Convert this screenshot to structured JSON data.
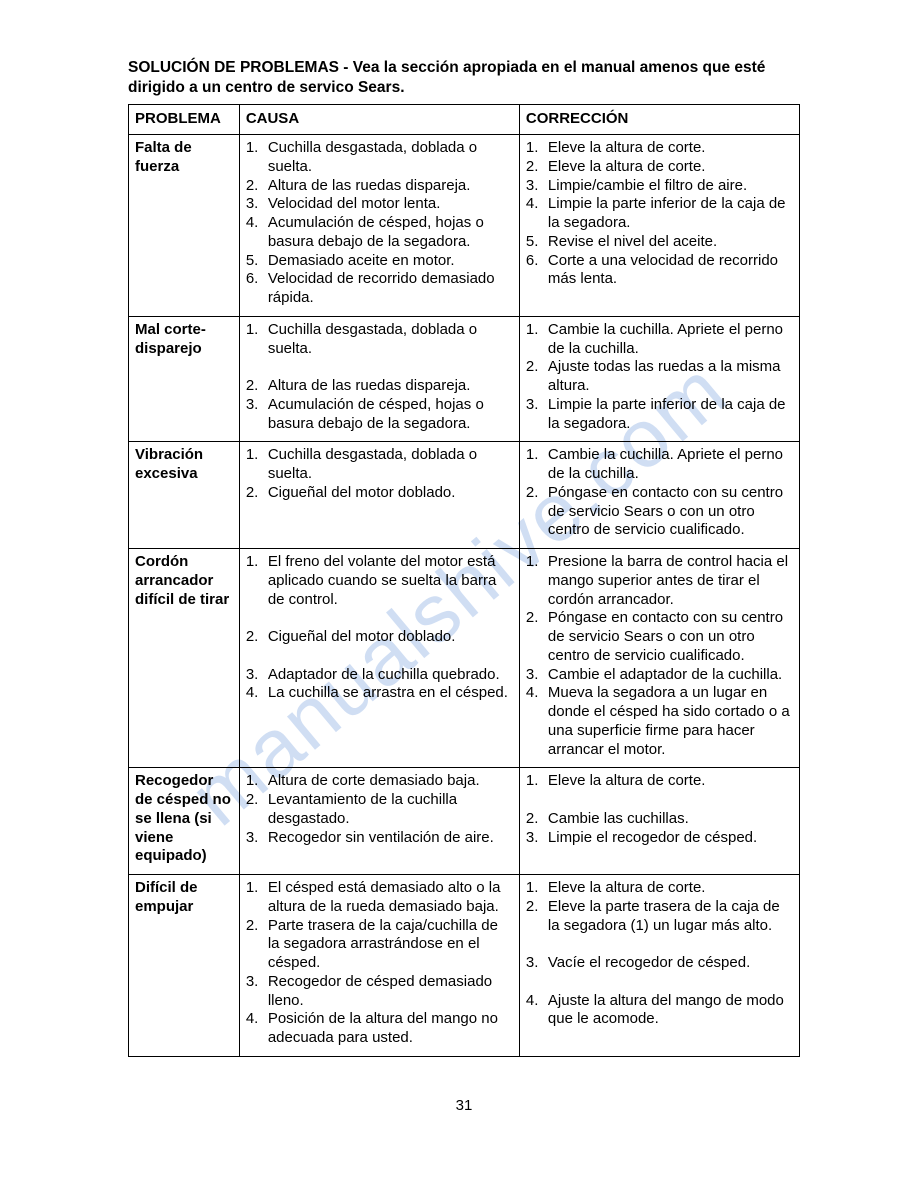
{
  "watermark_text": "manualshive.com",
  "title_prefix": "SOLUCIÓN DE PROBLEMAS",
  "title_rest": " - Vea la sección apropiada en el manual amenos que esté dirigido a un centro de servico Sears.",
  "headers": {
    "problem": "PROBLEMA",
    "cause": "CAUSA",
    "fix": "CORRECCIÓN"
  },
  "page_number": "31",
  "rows": [
    {
      "problem": "Falta de fuerza",
      "causes": [
        "Cuchilla desgastada, doblada o suelta.",
        "Altura de las ruedas dispareja.",
        "Velocidad del motor lenta.",
        "Acumulación de césped, hojas o basura debajo de la segadora.",
        "Demasiado aceite en motor.",
        "Velocidad de recorrido demasiado rápida."
      ],
      "fixes": [
        "Eleve la altura de corte.",
        "Eleve la altura de corte.",
        "Limpie/cambie el filtro de aire.",
        "Limpie la parte inferior de la caja de la segadora.",
        "Revise el nivel del aceite.",
        "Corte a una velocidad de recorrido más lenta."
      ],
      "cause_gaps": [
        0
      ],
      "fix_gaps": [
        0
      ]
    },
    {
      "problem": "Mal corte-disparejo",
      "causes": [
        "Cuchilla desgastada, doblada o suelta.",
        "Altura de las ruedas dispareja.",
        "Acumulación de césped, hojas o basura debajo de la segadora."
      ],
      "fixes": [
        "Cambie la cuchilla. Apriete el perno de la cuchilla.",
        "Ajuste todas las ruedas a la misma altura.",
        "Limpie la parte inferior de la caja de la segadora."
      ],
      "cause_gaps": [
        1
      ],
      "fix_gaps": []
    },
    {
      "problem": "Vibración excesiva",
      "causes": [
        "Cuchilla desgastada, doblada o suelta.",
        "Cigueñal del motor doblado."
      ],
      "fixes": [
        "Cambie la cuchilla. Apriete el perno de la cuchilla.",
        "Póngase en contacto con su centro de servicio Sears o con un otro centro de servicio cualificado."
      ],
      "cause_gaps": [],
      "fix_gaps": []
    },
    {
      "problem": "Cordón arrancador difícil de tirar",
      "causes": [
        "El freno del volante del motor está aplicado cuando se suelta la barra de control.",
        "Cigueñal del motor doblado.",
        "Adaptador de la cuchilla quebrado.",
        "La cuchilla se arrastra en el césped."
      ],
      "fixes": [
        "Presione la barra de control hacia el mango superior antes de tirar el cordón arrancador.",
        "Póngase en contacto con su centro de servicio Sears o con un otro centro de servicio cualificado.",
        "Cambie el adaptador de la cuchilla.",
        "Mueva la segadora a un lugar en donde el césped ha sido cortado o a una superficie firme para hacer arrancar el motor."
      ],
      "cause_gaps": [
        1,
        1
      ],
      "fix_gaps": []
    },
    {
      "problem": "Recogedor de césped no se llena (si viene equipado)",
      "causes": [
        "Altura de corte demasiado baja.",
        "Levantamiento de la cuchilla desgastado.",
        "Recogedor sin ventilación de aire."
      ],
      "fixes": [
        "Eleve la altura de corte.",
        "Cambie las cuchillas.",
        "Limpie el recogedor de césped."
      ],
      "cause_gaps": [],
      "fix_gaps": [
        1
      ]
    },
    {
      "problem": "Difícil de empujar",
      "causes": [
        "El césped está demasiado alto o la altura de la rueda demasiado baja.",
        "Parte trasera de la caja/cuchilla de la segadora arrastrándose en el césped.",
        "Recogedor de césped demasiado lleno.",
        "Posición de la altura del mango no adecuada para usted."
      ],
      "fixes": [
        "Eleve la altura de corte.",
        "Eleve la parte trasera de la caja de la segadora (1) un lugar más alto.",
        "Vacíe el recogedor de césped.",
        "Ajuste la altura del mango de modo que le acomode."
      ],
      "cause_gaps": [],
      "fix_gaps": [
        0,
        1,
        1
      ]
    }
  ]
}
